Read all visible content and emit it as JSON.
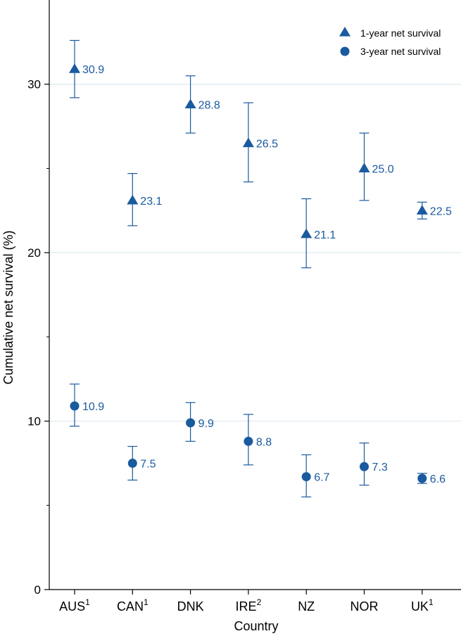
{
  "chart_data": {
    "type": "scatter",
    "xlabel": "Country",
    "ylabel": "Cumulative net survival (%)",
    "ylim": [
      0,
      35
    ],
    "yticks": [
      "0",
      "10",
      "20",
      "30"
    ],
    "grid": true,
    "legend_position": "top-right",
    "categories": [
      {
        "label": "AUS",
        "sup": "1"
      },
      {
        "label": "CAN",
        "sup": "1"
      },
      {
        "label": "DNK",
        "sup": ""
      },
      {
        "label": "IRE",
        "sup": "2"
      },
      {
        "label": "NZ",
        "sup": ""
      },
      {
        "label": "NOR",
        "sup": ""
      },
      {
        "label": "UK",
        "sup": "1"
      }
    ],
    "series": [
      {
        "name": "1-year net survival",
        "marker": "triangle",
        "values": [
          30.9,
          23.1,
          28.8,
          26.5,
          21.1,
          25.0,
          22.5
        ],
        "labels": [
          "30.9",
          "23.1",
          "28.8",
          "26.5",
          "21.1",
          "25.0",
          "22.5"
        ],
        "lower": [
          29.2,
          21.6,
          27.1,
          24.2,
          19.1,
          23.1,
          22.0
        ],
        "upper": [
          32.6,
          24.7,
          30.5,
          28.9,
          23.2,
          27.1,
          23.0
        ]
      },
      {
        "name": "3-year net survival",
        "marker": "circle",
        "values": [
          10.9,
          7.5,
          9.9,
          8.8,
          6.7,
          7.3,
          6.6
        ],
        "labels": [
          "10.9",
          "7.5",
          "9.9",
          "8.8",
          "6.7",
          "7.3",
          "6.6"
        ],
        "lower": [
          9.7,
          6.5,
          8.8,
          7.4,
          5.5,
          6.2,
          6.3
        ],
        "upper": [
          12.2,
          8.5,
          11.1,
          10.4,
          8.0,
          8.7,
          6.9
        ]
      }
    ],
    "colors": {
      "marker": "#1a5a9e",
      "grid": "#dde9ee",
      "axis": "#000000"
    }
  }
}
